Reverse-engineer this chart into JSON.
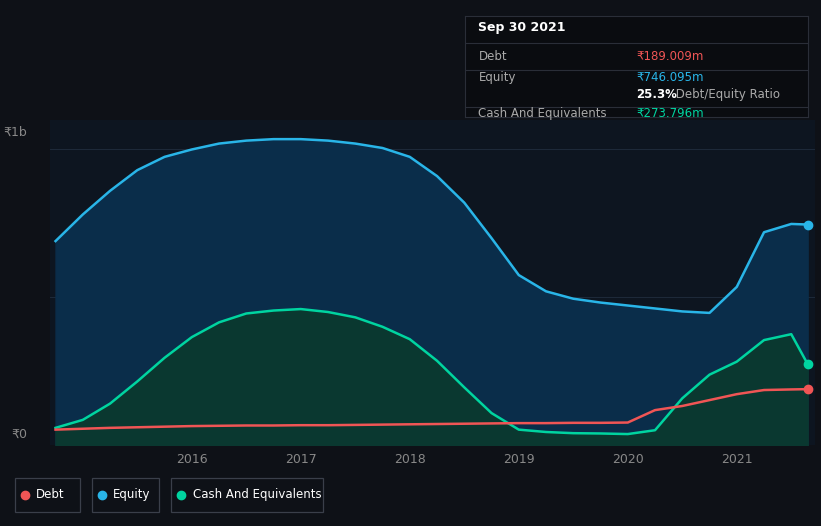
{
  "background_color": "#0e1117",
  "plot_bg_color": "#0d1520",
  "title_box": {
    "date": "Sep 30 2021",
    "debt_label": "Debt",
    "debt_value": "₹189.009m",
    "equity_label": "Equity",
    "equity_value": "₹746.095m",
    "ratio_bold": "25.3%",
    "ratio_rest": " Debt/Equity Ratio",
    "cash_label": "Cash And Equivalents",
    "cash_value": "₹273.796m"
  },
  "y1b_label": "₹1b",
  "y0_label": "₹0",
  "x_ticks": [
    "2016",
    "2017",
    "2018",
    "2019",
    "2020",
    "2021"
  ],
  "x_tick_positions": [
    2016,
    2017,
    2018,
    2019,
    2020,
    2021
  ],
  "colors": {
    "debt": "#f05555",
    "equity": "#29b5e8",
    "cash": "#00d4a0"
  },
  "fill_colors": {
    "equity": "#0a2d4a",
    "cash": "#0a3830"
  },
  "xlim": [
    2014.7,
    2021.72
  ],
  "ylim": [
    0,
    1100
  ],
  "years": [
    2014.75,
    2015.0,
    2015.25,
    2015.5,
    2015.75,
    2016.0,
    2016.25,
    2016.5,
    2016.75,
    2017.0,
    2017.25,
    2017.5,
    2017.75,
    2018.0,
    2018.25,
    2018.5,
    2018.75,
    2019.0,
    2019.25,
    2019.5,
    2019.75,
    2020.0,
    2020.25,
    2020.5,
    2020.75,
    2021.0,
    2021.25,
    2021.5,
    2021.65
  ],
  "equity": [
    690,
    780,
    860,
    930,
    975,
    1000,
    1020,
    1030,
    1035,
    1035,
    1030,
    1020,
    1005,
    975,
    910,
    820,
    700,
    575,
    520,
    495,
    482,
    472,
    462,
    452,
    447,
    535,
    720,
    748,
    746
  ],
  "cash": [
    58,
    85,
    140,
    215,
    295,
    365,
    415,
    445,
    455,
    460,
    450,
    432,
    400,
    358,
    285,
    195,
    108,
    52,
    44,
    40,
    39,
    37,
    50,
    158,
    238,
    282,
    355,
    375,
    274
  ],
  "debt": [
    52,
    55,
    58,
    60,
    62,
    64,
    65,
    66,
    66,
    67,
    67,
    68,
    69,
    70,
    71,
    72,
    73,
    74,
    74,
    75,
    75,
    76,
    118,
    132,
    152,
    172,
    186,
    188,
    189
  ]
}
